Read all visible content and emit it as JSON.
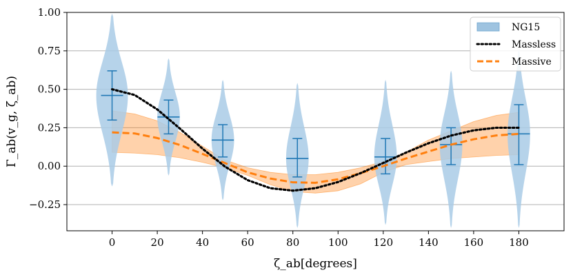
{
  "chart_data": {
    "type": "violin",
    "xlabel": "ζ_ab[degrees]",
    "ylabel": "Γ_ab(v_g, ζ_ab)",
    "xlim": [
      -20,
      200
    ],
    "ylim": [
      -0.42,
      1.0
    ],
    "xticks": [
      0,
      20,
      40,
      60,
      80,
      100,
      120,
      140,
      160,
      180
    ],
    "yticks": [
      -0.25,
      0.0,
      0.25,
      0.5,
      0.75,
      1.0
    ],
    "xtick_labels": [
      "0",
      "20",
      "40",
      "60",
      "80",
      "100",
      "120",
      "140",
      "160",
      "180"
    ],
    "ytick_labels": [
      "−0.25",
      "0.00",
      "0.25",
      "0.50",
      "0.75",
      "1.00"
    ],
    "grid": "horizontal",
    "legend_position": "top-right",
    "legend": [
      {
        "label": "NG15",
        "style": "filled-box",
        "color": "#9ec3e0"
      },
      {
        "label": "Massless",
        "style": "dotted",
        "color": "#000000"
      },
      {
        "label": "Massive",
        "style": "dashed",
        "color": "#ff7f0e"
      }
    ],
    "violins": {
      "name": "NG15",
      "color": "#1f77b4",
      "fill": "#a9cbe6",
      "points": [
        {
          "x": 0,
          "median": 0.46,
          "low": 0.3,
          "high": 0.62,
          "top": 0.99,
          "bottom": -0.13,
          "mode": 0.46,
          "width": 14
        },
        {
          "x": 25,
          "median": 0.32,
          "low": 0.21,
          "high": 0.43,
          "top": 0.7,
          "bottom": -0.06,
          "mode": 0.32,
          "width": 10
        },
        {
          "x": 49,
          "median": 0.17,
          "low": 0.06,
          "high": 0.27,
          "top": 0.56,
          "bottom": -0.22,
          "mode": 0.17,
          "width": 10
        },
        {
          "x": 82,
          "median": 0.05,
          "low": -0.07,
          "high": 0.18,
          "top": 0.54,
          "bottom": -0.4,
          "mode": 0.05,
          "width": 10
        },
        {
          "x": 121,
          "median": 0.06,
          "low": -0.05,
          "high": 0.18,
          "top": 0.56,
          "bottom": -0.38,
          "mode": 0.06,
          "width": 10
        },
        {
          "x": 150,
          "median": 0.14,
          "low": 0.01,
          "high": 0.25,
          "top": 0.62,
          "bottom": -0.4,
          "mode": 0.14,
          "width": 10
        },
        {
          "x": 180,
          "median": 0.21,
          "low": 0.01,
          "high": 0.4,
          "top": 0.76,
          "bottom": -0.4,
          "mode": 0.21,
          "width": 10
        }
      ]
    },
    "massless": {
      "name": "Massless",
      "x": [
        0,
        10,
        20,
        30,
        40,
        50,
        60,
        70,
        80,
        90,
        100,
        110,
        120,
        130,
        140,
        150,
        160,
        170,
        180
      ],
      "y": [
        0.5,
        0.463,
        0.369,
        0.245,
        0.114,
        -0.003,
        -0.091,
        -0.143,
        -0.159,
        -0.143,
        -0.103,
        -0.045,
        0.021,
        0.088,
        0.149,
        0.199,
        0.233,
        0.25,
        0.25
      ]
    },
    "massive": {
      "name": "Massive",
      "x": [
        0,
        10,
        20,
        30,
        40,
        50,
        60,
        70,
        80,
        90,
        100,
        110,
        120,
        130,
        140,
        150,
        160,
        170,
        180
      ],
      "y": [
        0.22,
        0.213,
        0.183,
        0.138,
        0.08,
        0.02,
        -0.04,
        -0.08,
        -0.105,
        -0.108,
        -0.085,
        -0.045,
        0.0,
        0.05,
        0.095,
        0.14,
        0.175,
        0.2,
        0.21
      ],
      "band_upper": [
        0.36,
        0.34,
        0.295,
        0.22,
        0.13,
        0.04,
        -0.01,
        -0.04,
        -0.055,
        -0.055,
        -0.04,
        -0.01,
        0.03,
        0.09,
        0.17,
        0.23,
        0.29,
        0.33,
        0.35
      ],
      "band_lower": [
        0.09,
        0.085,
        0.075,
        0.055,
        0.025,
        -0.01,
        -0.06,
        -0.12,
        -0.165,
        -0.175,
        -0.16,
        -0.115,
        -0.04,
        0.01,
        0.03,
        0.05,
        0.06,
        0.07,
        0.075
      ]
    }
  }
}
